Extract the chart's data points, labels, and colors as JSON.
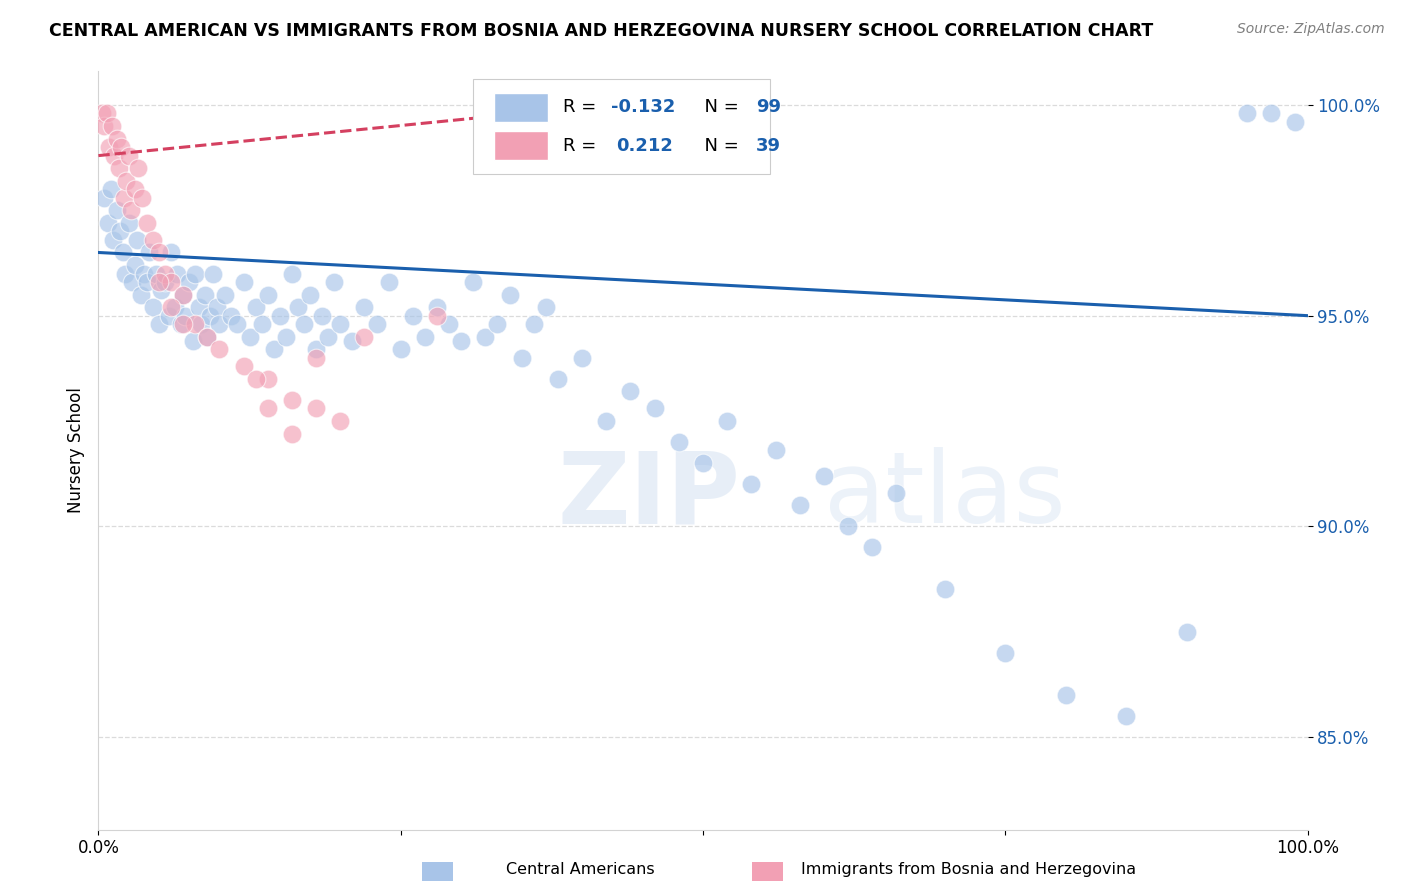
{
  "title": "CENTRAL AMERICAN VS IMMIGRANTS FROM BOSNIA AND HERZEGOVINA NURSERY SCHOOL CORRELATION CHART",
  "source": "Source: ZipAtlas.com",
  "ylabel": "Nursery School",
  "xlim": [
    0.0,
    1.0
  ],
  "ylim": [
    0.828,
    1.008
  ],
  "yticks": [
    0.85,
    0.9,
    0.95,
    1.0
  ],
  "ytick_labels": [
    "85.0%",
    "90.0%",
    "95.0%",
    "100.0%"
  ],
  "xticks": [
    0.0,
    0.25,
    0.5,
    0.75,
    1.0
  ],
  "xtick_labels": [
    "0.0%",
    "",
    "",
    "",
    "100.0%"
  ],
  "blue_R": -0.132,
  "blue_N": 99,
  "pink_R": 0.212,
  "pink_N": 39,
  "blue_color": "#a8c4e8",
  "pink_color": "#f2a0b4",
  "blue_line_color": "#1a5fad",
  "pink_line_color": "#d44060",
  "background_color": "#ffffff",
  "watermark": "ZIPatlas",
  "legend_label_blue": "Central Americans",
  "legend_label_pink": "Immigrants from Bosnia and Herzegovina",
  "blue_scatter_x": [
    0.005,
    0.008,
    0.01,
    0.012,
    0.015,
    0.018,
    0.02,
    0.022,
    0.025,
    0.028,
    0.03,
    0.032,
    0.035,
    0.038,
    0.04,
    0.042,
    0.045,
    0.048,
    0.05,
    0.052,
    0.055,
    0.058,
    0.06,
    0.063,
    0.065,
    0.068,
    0.07,
    0.072,
    0.075,
    0.078,
    0.08,
    0.083,
    0.085,
    0.088,
    0.09,
    0.092,
    0.095,
    0.098,
    0.1,
    0.105,
    0.11,
    0.115,
    0.12,
    0.125,
    0.13,
    0.135,
    0.14,
    0.145,
    0.15,
    0.155,
    0.16,
    0.165,
    0.17,
    0.175,
    0.18,
    0.185,
    0.19,
    0.195,
    0.2,
    0.21,
    0.22,
    0.23,
    0.24,
    0.25,
    0.26,
    0.27,
    0.28,
    0.29,
    0.3,
    0.31,
    0.32,
    0.33,
    0.34,
    0.35,
    0.36,
    0.37,
    0.38,
    0.4,
    0.42,
    0.44,
    0.46,
    0.48,
    0.5,
    0.52,
    0.54,
    0.56,
    0.58,
    0.6,
    0.62,
    0.64,
    0.66,
    0.7,
    0.75,
    0.8,
    0.85,
    0.9,
    0.95,
    0.97,
    0.99
  ],
  "blue_scatter_y": [
    0.978,
    0.972,
    0.98,
    0.968,
    0.975,
    0.97,
    0.965,
    0.96,
    0.972,
    0.958,
    0.962,
    0.968,
    0.955,
    0.96,
    0.958,
    0.965,
    0.952,
    0.96,
    0.948,
    0.956,
    0.958,
    0.95,
    0.965,
    0.952,
    0.96,
    0.948,
    0.955,
    0.95,
    0.958,
    0.944,
    0.96,
    0.952,
    0.948,
    0.955,
    0.945,
    0.95,
    0.96,
    0.952,
    0.948,
    0.955,
    0.95,
    0.948,
    0.958,
    0.945,
    0.952,
    0.948,
    0.955,
    0.942,
    0.95,
    0.945,
    0.96,
    0.952,
    0.948,
    0.955,
    0.942,
    0.95,
    0.945,
    0.958,
    0.948,
    0.944,
    0.952,
    0.948,
    0.958,
    0.942,
    0.95,
    0.945,
    0.952,
    0.948,
    0.944,
    0.958,
    0.945,
    0.948,
    0.955,
    0.94,
    0.948,
    0.952,
    0.935,
    0.94,
    0.925,
    0.932,
    0.928,
    0.92,
    0.915,
    0.925,
    0.91,
    0.918,
    0.905,
    0.912,
    0.9,
    0.895,
    0.908,
    0.885,
    0.87,
    0.86,
    0.855,
    0.875,
    0.998,
    0.998,
    0.996
  ],
  "pink_scatter_x": [
    0.003,
    0.005,
    0.007,
    0.009,
    0.011,
    0.013,
    0.015,
    0.017,
    0.019,
    0.021,
    0.023,
    0.025,
    0.027,
    0.03,
    0.033,
    0.036,
    0.04,
    0.045,
    0.05,
    0.055,
    0.06,
    0.07,
    0.08,
    0.09,
    0.1,
    0.12,
    0.14,
    0.16,
    0.18,
    0.2,
    0.05,
    0.06,
    0.07,
    0.13,
    0.14,
    0.16,
    0.18,
    0.22,
    0.28
  ],
  "pink_scatter_y": [
    0.998,
    0.995,
    0.998,
    0.99,
    0.995,
    0.988,
    0.992,
    0.985,
    0.99,
    0.978,
    0.982,
    0.988,
    0.975,
    0.98,
    0.985,
    0.978,
    0.972,
    0.968,
    0.965,
    0.96,
    0.958,
    0.955,
    0.948,
    0.945,
    0.942,
    0.938,
    0.935,
    0.93,
    0.928,
    0.925,
    0.958,
    0.952,
    0.948,
    0.935,
    0.928,
    0.922,
    0.94,
    0.945,
    0.95
  ],
  "blue_trend_x0": 0.0,
  "blue_trend_y0": 0.965,
  "blue_trend_x1": 1.0,
  "blue_trend_y1": 0.95,
  "pink_trend_x0": 0.0,
  "pink_trend_y0": 0.988,
  "pink_trend_x1": 0.35,
  "pink_trend_y1": 0.998
}
